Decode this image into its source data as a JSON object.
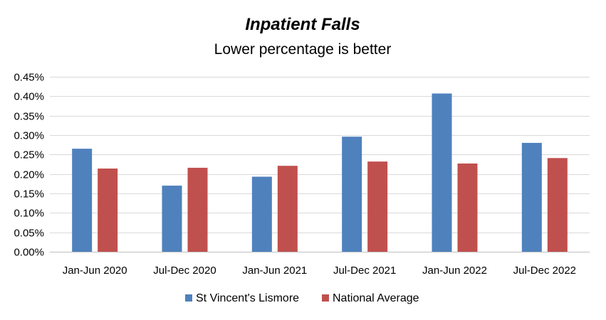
{
  "chart_data": {
    "type": "bar",
    "title": "Inpatient Falls",
    "subtitle": "Lower percentage is better",
    "xlabel": "",
    "ylabel": "",
    "categories": [
      "Jan-Jun 2020",
      "Jul-Dec 2020",
      "Jan-Jun 2021",
      "Jul-Dec 2021",
      "Jan-Jun 2022",
      "Jul-Dec 2022"
    ],
    "series": [
      {
        "name": "St Vincent's Lismore",
        "color": "#4f81bd",
        "values": [
          0.265,
          0.17,
          0.193,
          0.296,
          0.407,
          0.28
        ]
      },
      {
        "name": "National Average",
        "color": "#c0504d",
        "values": [
          0.214,
          0.216,
          0.221,
          0.232,
          0.227,
          0.241
        ]
      }
    ],
    "ylim": [
      0,
      0.45
    ],
    "yticks": [
      0,
      0.05,
      0.1,
      0.15,
      0.2,
      0.25,
      0.3,
      0.35,
      0.4,
      0.45
    ],
    "ytick_labels": [
      "0.00%",
      "0.05%",
      "0.10%",
      "0.15%",
      "0.20%",
      "0.25%",
      "0.30%",
      "0.35%",
      "0.40%",
      "0.45%"
    ],
    "grid": true,
    "legend_position": "bottom"
  }
}
